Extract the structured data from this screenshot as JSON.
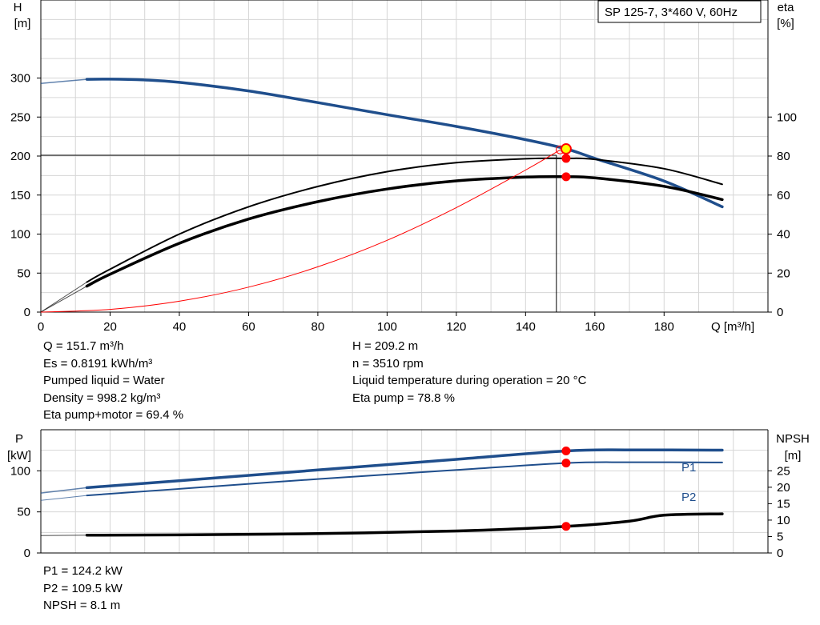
{
  "chart_data": [
    {
      "type": "line",
      "title": "SP 125-7, 3*460 V, 60Hz",
      "xlabel": "Q [m³/h]",
      "ylabel": [
        "H",
        "[m]"
      ],
      "y2label": [
        "eta",
        "[%]"
      ],
      "xlim": [
        0,
        210
      ],
      "ylim": [
        0,
        400
      ],
      "y2lim": [
        0,
        160
      ],
      "xticks": [
        0,
        20,
        40,
        60,
        80,
        100,
        120,
        140,
        160,
        180
      ],
      "yticks": [
        0,
        50,
        100,
        150,
        200,
        250,
        300
      ],
      "y2ticks": [
        0,
        20,
        40,
        60,
        80,
        100
      ],
      "grid": true,
      "series": [
        {
          "axis": "left",
          "color": "#1f4e8c",
          "x": [
            0,
            13.3,
            20,
            30,
            40,
            60,
            80,
            100,
            120,
            140,
            151.7,
            160,
            180,
            196.8
          ],
          "y": [
            293,
            298.4,
            298.6,
            297.5,
            294.5,
            283.5,
            268.5,
            253,
            238,
            221,
            209.2,
            197,
            168,
            135
          ]
        },
        {
          "axis": "right",
          "color": "#000000",
          "x": [
            0,
            13.3,
            20,
            40,
            60,
            80,
            100,
            120,
            140,
            151.7,
            160,
            180,
            196.8
          ],
          "y": [
            0,
            15.4,
            22,
            40,
            54,
            64.4,
            72,
            76.6,
            78.6,
            78.8,
            78.3,
            73.5,
            65.5
          ]
        },
        {
          "axis": "right",
          "color": "#000000",
          "x": [
            0,
            13.3,
            20,
            40,
            60,
            80,
            100,
            120,
            140,
            151.7,
            160,
            180,
            196.8
          ],
          "y": [
            0,
            13.3,
            19.4,
            35.3,
            47.7,
            56.6,
            63.1,
            67.3,
            69.2,
            69.4,
            68.8,
            64.5,
            57.7
          ]
        },
        {
          "axis": "left",
          "color": "#ff0000",
          "x": [
            0,
            20,
            40,
            60,
            80,
            100,
            120,
            140,
            150
          ],
          "y": [
            0,
            3.5,
            14,
            32,
            58,
            92,
            134,
            182,
            208
          ]
        }
      ],
      "duty_point": {
        "q": 151.7,
        "h": 209.2
      },
      "operating_markers": [
        {
          "axis": "left",
          "x": 151.7,
          "y": 209.2
        },
        {
          "axis": "right",
          "x": 151.7,
          "y": 78.8
        },
        {
          "axis": "right",
          "x": 151.7,
          "y": 69.4
        }
      ],
      "reference_lines": {
        "h": 201,
        "q": 148.9
      }
    },
    {
      "type": "line",
      "ylabel": [
        "P",
        "[kW]"
      ],
      "y2label": [
        "NPSH",
        "[m]"
      ],
      "xlim": [
        0,
        210
      ],
      "ylim": [
        0,
        150
      ],
      "y2lim": [
        0,
        37.5
      ],
      "yticks": [
        0,
        50,
        100
      ],
      "y2ticks": [
        0,
        5,
        10,
        15,
        20,
        25
      ],
      "grid": true,
      "series": [
        {
          "name": "P1",
          "axis": "left",
          "color": "#1f4e8c",
          "x": [
            0,
            13.3,
            40,
            80,
            120,
            151.7,
            170,
            196.8
          ],
          "y": [
            73,
            79.5,
            88,
            101,
            114,
            124.2,
            125.5,
            125.2
          ]
        },
        {
          "name": "P2",
          "axis": "left",
          "color": "#1f4e8c",
          "x": [
            0,
            13.3,
            40,
            80,
            120,
            151.7,
            170,
            196.8
          ],
          "y": [
            64,
            70,
            78,
            90,
            101,
            109.5,
            110.5,
            110.2
          ]
        },
        {
          "axis": "right",
          "color": "#000000",
          "x": [
            0,
            13.3,
            40,
            80,
            120,
            151.7,
            170,
            180,
            196.8
          ],
          "y": [
            5.3,
            5.4,
            5.5,
            5.9,
            6.7,
            8.1,
            9.7,
            11.5,
            11.9
          ]
        }
      ],
      "operating_markers": [
        {
          "axis": "left",
          "x": 151.7,
          "y": 124.2
        },
        {
          "axis": "left",
          "x": 151.7,
          "y": 109.5
        },
        {
          "axis": "right",
          "x": 151.7,
          "y": 8.1
        }
      ]
    }
  ],
  "info": {
    "left": [
      "Q = 151.7 m³/h",
      "Es = 0.8191 kWh/m³",
      "Pumped liquid = Water",
      "Density = 998.2 kg/m³",
      "Eta pump+motor = 69.4 %"
    ],
    "right": [
      "H = 209.2 m",
      "n = 3510 rpm",
      "Liquid temperature during operation = 20 °C",
      "Eta pump = 78.8 %"
    ],
    "bottom": [
      "P1 = 124.2 kW",
      "P2 = 109.5 kW",
      "NPSH = 8.1 m"
    ]
  },
  "colors": {
    "curve_blue": "#1f4e8c",
    "curve_black": "#000000",
    "system_curve": "#ff0000",
    "marker_red": "#ff0000",
    "marker_yellow": "#ffff00",
    "grid": "#d6d6d6"
  }
}
